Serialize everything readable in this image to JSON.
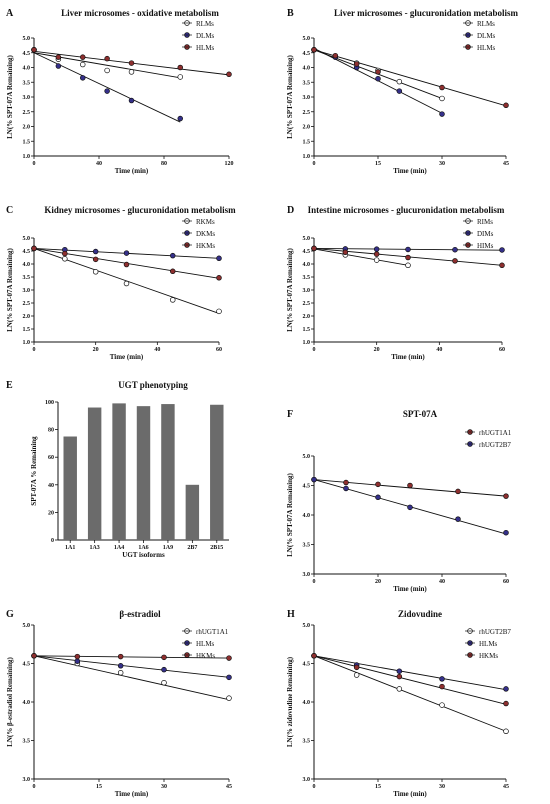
{
  "figure": {
    "panels": [
      {
        "label": "A",
        "title": "Liver microsomes - oxidative metabolism"
      },
      {
        "label": "B",
        "title": "Liver microsomes - glucuronidation metabolism"
      },
      {
        "label": "C",
        "title": "Kidney microsomes - glucuronidation metabolism"
      },
      {
        "label": "D",
        "title": "Intestine microsomes - glucuronidation metabolism"
      },
      {
        "label": "E",
        "title": "UGT phenotyping"
      },
      {
        "label": "F",
        "title": "SPT-07A"
      },
      {
        "label": "G",
        "title": "β-estradiol"
      },
      {
        "label": "H",
        "title": "Zidovudine"
      }
    ]
  },
  "colors": {
    "white": "#ffffff",
    "blue": "#35308a",
    "red": "#8e2f2f",
    "bar": "#6b6b6b",
    "line": "#111111"
  },
  "chart_data": [
    {
      "panel": "A",
      "type": "line",
      "title": "Liver microsomes - oxidative metabolism",
      "xlabel": "Time (min)",
      "ylabel": "LN(% SPT-07A Remaining)",
      "xlim": [
        0,
        120
      ],
      "ylim": [
        1.0,
        5.0
      ],
      "xticks": [
        0,
        40,
        80,
        120
      ],
      "yticks": [
        1.0,
        1.5,
        2.0,
        2.5,
        3.0,
        3.5,
        4.0,
        4.5,
        5.0
      ],
      "series": [
        {
          "name": "RLMs",
          "color": "white",
          "x": [
            0,
            15,
            30,
            45,
            60,
            90
          ],
          "y": [
            4.6,
            4.28,
            4.1,
            3.9,
            3.85,
            3.68
          ],
          "fit": [
            [
              0,
              4.5
            ],
            [
              90,
              3.65
            ]
          ]
        },
        {
          "name": "DLMs",
          "color": "blue",
          "x": [
            0,
            15,
            30,
            45,
            60,
            90
          ],
          "y": [
            4.6,
            4.05,
            3.65,
            3.2,
            2.88,
            2.27
          ],
          "fit": [
            [
              0,
              4.5
            ],
            [
              90,
              2.15
            ]
          ]
        },
        {
          "name": "HLMs",
          "color": "red",
          "x": [
            0,
            15,
            30,
            45,
            60,
            90,
            120
          ],
          "y": [
            4.6,
            4.35,
            4.35,
            4.3,
            4.15,
            4.0,
            3.77
          ],
          "fit": [
            [
              0,
              4.55
            ],
            [
              120,
              3.75
            ]
          ]
        }
      ]
    },
    {
      "panel": "B",
      "type": "line",
      "title": "Liver microsomes - glucuronidation metabolism",
      "xlabel": "Time (min)",
      "ylabel": "LN(% SPT-07A Remaining)",
      "xlim": [
        0,
        45
      ],
      "ylim": [
        1.0,
        5.0
      ],
      "xticks": [
        0,
        15,
        30,
        45
      ],
      "yticks": [
        1.0,
        1.5,
        2.0,
        2.5,
        3.0,
        3.5,
        4.0,
        4.5,
        5.0
      ],
      "series": [
        {
          "name": "RLMs",
          "color": "white",
          "x": [
            0,
            5,
            10,
            15,
            20,
            30
          ],
          "y": [
            4.6,
            4.38,
            4.15,
            3.9,
            3.52,
            2.95
          ],
          "fit": [
            [
              0,
              4.6
            ],
            [
              30,
              2.95
            ]
          ]
        },
        {
          "name": "DLMs",
          "color": "blue",
          "x": [
            0,
            5,
            10,
            15,
            20,
            30
          ],
          "y": [
            4.6,
            4.35,
            4.0,
            3.62,
            3.2,
            2.42
          ],
          "fit": [
            [
              0,
              4.65
            ],
            [
              30,
              2.45
            ]
          ]
        },
        {
          "name": "HLMs",
          "color": "red",
          "x": [
            0,
            5,
            10,
            15,
            30,
            45
          ],
          "y": [
            4.6,
            4.4,
            4.12,
            3.85,
            3.32,
            2.72
          ],
          "fit": [
            [
              0,
              4.6
            ],
            [
              45,
              2.7
            ]
          ]
        }
      ]
    },
    {
      "panel": "C",
      "type": "line",
      "title": "Kidney microsomes - glucuronidation metabolism",
      "xlabel": "Time (min)",
      "ylabel": "LN(% SPT-07A Remaining)",
      "xlim": [
        0,
        60
      ],
      "ylim": [
        1.0,
        5.0
      ],
      "xticks": [
        0,
        20,
        40,
        60
      ],
      "yticks": [
        1.0,
        1.5,
        2.0,
        2.5,
        3.0,
        3.5,
        4.0,
        4.5,
        5.0
      ],
      "series": [
        {
          "name": "RKMs",
          "color": "white",
          "x": [
            0,
            10,
            20,
            30,
            45,
            60
          ],
          "y": [
            4.6,
            4.2,
            3.7,
            3.25,
            2.62,
            2.18
          ],
          "fit": [
            [
              0,
              4.6
            ],
            [
              60,
              2.1
            ]
          ]
        },
        {
          "name": "DKMs",
          "color": "blue",
          "x": [
            0,
            10,
            20,
            30,
            45,
            60
          ],
          "y": [
            4.6,
            4.55,
            4.48,
            4.42,
            4.32,
            4.22
          ],
          "fit": [
            [
              0,
              4.6
            ],
            [
              60,
              4.22
            ]
          ]
        },
        {
          "name": "HKMs",
          "color": "red",
          "x": [
            0,
            10,
            20,
            30,
            45,
            60
          ],
          "y": [
            4.6,
            4.4,
            4.18,
            3.98,
            3.72,
            3.47
          ],
          "fit": [
            [
              0,
              4.6
            ],
            [
              60,
              3.45
            ]
          ]
        }
      ]
    },
    {
      "panel": "D",
      "type": "line",
      "title": "Intestine microsomes - glucuronidation metabolism",
      "xlabel": "Time (min)",
      "ylabel": "LN(% SPT-07A Remaining)",
      "xlim": [
        0,
        60
      ],
      "ylim": [
        1.0,
        5.0
      ],
      "xticks": [
        0,
        20,
        40,
        60
      ],
      "yticks": [
        1.0,
        1.5,
        2.0,
        2.5,
        3.0,
        3.5,
        4.0,
        4.5,
        5.0
      ],
      "series": [
        {
          "name": "RIMs",
          "color": "white",
          "x": [
            0,
            10,
            20,
            30
          ],
          "y": [
            4.6,
            4.35,
            4.15,
            3.95
          ],
          "fit": [
            [
              0,
              4.58
            ],
            [
              30,
              3.95
            ]
          ]
        },
        {
          "name": "DIMs",
          "color": "blue",
          "x": [
            0,
            10,
            20,
            30,
            45,
            60
          ],
          "y": [
            4.6,
            4.58,
            4.57,
            4.56,
            4.55,
            4.54
          ],
          "fit": [
            [
              0,
              4.6
            ],
            [
              60,
              4.53
            ]
          ]
        },
        {
          "name": "HIMs",
          "color": "red",
          "x": [
            0,
            10,
            20,
            30,
            45,
            60
          ],
          "y": [
            4.6,
            4.45,
            4.38,
            4.25,
            4.12,
            3.95
          ],
          "fit": [
            [
              0,
              4.6
            ],
            [
              60,
              3.95
            ]
          ]
        }
      ]
    },
    {
      "panel": "E",
      "type": "bar",
      "title": "UGT phenotyping",
      "xlabel": "UGT isoforms",
      "ylabel": "SPT-07A % Remaining",
      "categories": [
        "1A1",
        "1A3",
        "1A4",
        "1A6",
        "1A9",
        "2B7",
        "2B15"
      ],
      "values": [
        75,
        96,
        99,
        97,
        98.5,
        40,
        98
      ],
      "ylim": [
        0,
        100
      ],
      "yticks": [
        0,
        20,
        40,
        60,
        80,
        100
      ]
    },
    {
      "panel": "F",
      "type": "line",
      "title": "SPT-07A",
      "xlabel": "Time (min)",
      "ylabel": "LN(% SPT-07A Remaining)",
      "xlim": [
        0,
        60
      ],
      "ylim": [
        3.0,
        5.0
      ],
      "xticks": [
        0,
        20,
        40,
        60
      ],
      "yticks": [
        3.0,
        3.5,
        4.0,
        4.5,
        5.0
      ],
      "series": [
        {
          "name": "rhUGT1A1",
          "color": "red",
          "x": [
            0,
            10,
            20,
            30,
            45,
            60
          ],
          "y": [
            4.6,
            4.55,
            4.52,
            4.5,
            4.4,
            4.32
          ],
          "fit": [
            [
              0,
              4.6
            ],
            [
              60,
              4.32
            ]
          ]
        },
        {
          "name": "rhUGT2B7",
          "color": "blue",
          "x": [
            0,
            10,
            20,
            30,
            45,
            60
          ],
          "y": [
            4.6,
            4.45,
            4.3,
            4.13,
            3.93,
            3.7
          ],
          "fit": [
            [
              0,
              4.6
            ],
            [
              60,
              3.68
            ]
          ]
        }
      ]
    },
    {
      "panel": "G",
      "type": "line",
      "title": "β-estradiol",
      "xlabel": "Time (min)",
      "ylabel": "LN(% β-estradiol Remaining)",
      "xlim": [
        0,
        45
      ],
      "ylim": [
        3.0,
        5.0
      ],
      "xticks": [
        0,
        15,
        30,
        45
      ],
      "yticks": [
        3.0,
        3.5,
        4.0,
        4.5,
        5.0
      ],
      "series": [
        {
          "name": "rhUGT1A1",
          "color": "white",
          "x": [
            0,
            10,
            20,
            30,
            45
          ],
          "y": [
            4.6,
            4.5,
            4.38,
            4.25,
            4.05
          ],
          "fit": [
            [
              0,
              4.6
            ],
            [
              45,
              4.03
            ]
          ]
        },
        {
          "name": "HLMs",
          "color": "blue",
          "x": [
            0,
            10,
            20,
            30,
            45
          ],
          "y": [
            4.6,
            4.53,
            4.47,
            4.42,
            4.32
          ],
          "fit": [
            [
              0,
              4.6
            ],
            [
              45,
              4.32
            ]
          ]
        },
        {
          "name": "HKMs",
          "color": "red",
          "x": [
            0,
            10,
            20,
            30,
            45
          ],
          "y": [
            4.6,
            4.59,
            4.59,
            4.58,
            4.57
          ],
          "fit": [
            [
              0,
              4.6
            ],
            [
              45,
              4.57
            ]
          ]
        }
      ]
    },
    {
      "panel": "H",
      "type": "line",
      "title": "Zidovudine",
      "xlabel": "Time (min)",
      "ylabel": "LN(% zidovudine Remaining)",
      "xlim": [
        0,
        45
      ],
      "ylim": [
        3.0,
        5.0
      ],
      "xticks": [
        0,
        15,
        30,
        45
      ],
      "yticks": [
        3.0,
        3.5,
        4.0,
        4.5,
        5.0
      ],
      "series": [
        {
          "name": "rhUGT2B7",
          "color": "white",
          "x": [
            0,
            10,
            20,
            30,
            45
          ],
          "y": [
            4.6,
            4.35,
            4.17,
            3.96,
            3.62
          ],
          "fit": [
            [
              0,
              4.6
            ],
            [
              45,
              3.62
            ]
          ]
        },
        {
          "name": "HLMs",
          "color": "blue",
          "x": [
            0,
            10,
            20,
            30,
            45
          ],
          "y": [
            4.6,
            4.48,
            4.4,
            4.3,
            4.17
          ],
          "fit": [
            [
              0,
              4.6
            ],
            [
              45,
              4.16
            ]
          ]
        },
        {
          "name": "HKMs",
          "color": "red",
          "x": [
            0,
            10,
            20,
            30,
            45
          ],
          "y": [
            4.6,
            4.45,
            4.33,
            4.2,
            3.98
          ],
          "fit": [
            [
              0,
              4.6
            ],
            [
              45,
              3.97
            ]
          ]
        }
      ]
    }
  ]
}
